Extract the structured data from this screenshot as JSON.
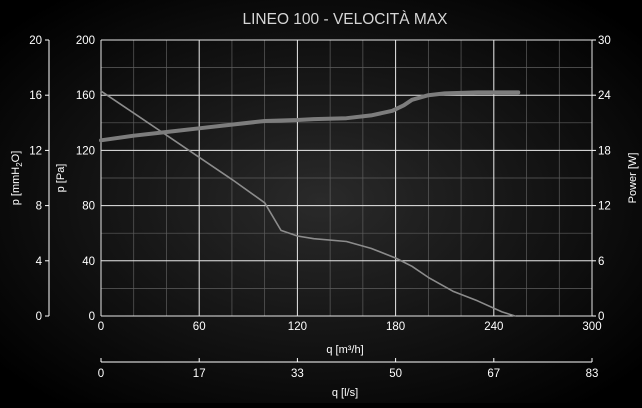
{
  "chart_data": {
    "type": "line",
    "title": "LINEO 100 - VELOCITÀ MAX",
    "xlabel": "q [m³/h]",
    "xlim": [
      0,
      300
    ],
    "x_ticks": [
      "0",
      "60",
      "120",
      "180",
      "240",
      "300"
    ],
    "secondary_x": {
      "label": "q [l/s]",
      "ticks": [
        "0",
        "17",
        "33",
        "50",
        "67",
        "83"
      ]
    },
    "ylabel": "p [Pa]",
    "ylim": [
      0,
      200
    ],
    "y_ticks": [
      "0",
      "40",
      "80",
      "120",
      "160",
      "200"
    ],
    "y_outer": {
      "label_prefix": "p [mmH",
      "label_sub": "2",
      "label_suffix": "O]",
      "ticks": [
        "0",
        "4",
        "8",
        "12",
        "16",
        "20"
      ]
    },
    "y_right": {
      "label": "Power [W]",
      "ylim": [
        0,
        30
      ],
      "ticks": [
        "0",
        "6",
        "12",
        "18",
        "24",
        "30"
      ]
    },
    "grid": true,
    "series": [
      {
        "axis": "left",
        "color": "#8c8c8c",
        "points": [
          [
            0,
            163
          ],
          [
            20,
            147
          ],
          [
            40,
            131
          ],
          [
            60,
            115
          ],
          [
            80,
            99
          ],
          [
            100,
            82
          ],
          [
            110,
            62
          ],
          [
            120,
            58
          ],
          [
            130,
            56
          ],
          [
            150,
            54
          ],
          [
            165,
            49
          ],
          [
            180,
            42
          ],
          [
            190,
            36
          ],
          [
            200,
            28
          ],
          [
            215,
            18
          ],
          [
            230,
            11
          ],
          [
            245,
            3
          ],
          [
            253,
            0
          ]
        ]
      },
      {
        "axis": "right",
        "color": "#7d7d7d",
        "points": [
          [
            0,
            19.1
          ],
          [
            20,
            19.6
          ],
          [
            40,
            20.0
          ],
          [
            60,
            20.4
          ],
          [
            80,
            20.8
          ],
          [
            100,
            21.2
          ],
          [
            120,
            21.3
          ],
          [
            130,
            21.4
          ],
          [
            150,
            21.5
          ],
          [
            165,
            21.8
          ],
          [
            178,
            22.3
          ],
          [
            185,
            22.9
          ],
          [
            190,
            23.5
          ],
          [
            200,
            24.0
          ],
          [
            210,
            24.2
          ],
          [
            230,
            24.3
          ],
          [
            255,
            24.3
          ]
        ]
      }
    ]
  }
}
